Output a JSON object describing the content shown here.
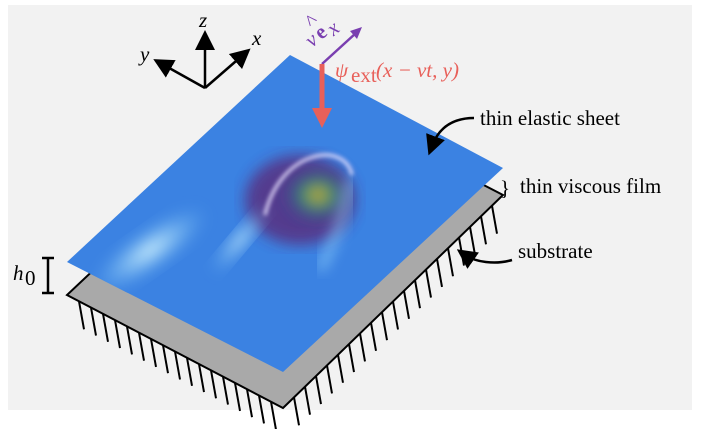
{
  "axes": {
    "z": "z",
    "y": "y",
    "x": "x"
  },
  "velocity": {
    "symbol": "v",
    "unit_vector": "e",
    "subscript": "x"
  },
  "force": {
    "symbol": "ψ",
    "subscript": "ext",
    "args": "(x − vt, y)"
  },
  "labels": {
    "sheet": "thin elastic sheet",
    "film": "thin viscous film",
    "substrate": "substrate",
    "brace": "}"
  },
  "height": {
    "symbol": "h",
    "subscript": "0"
  }
}
